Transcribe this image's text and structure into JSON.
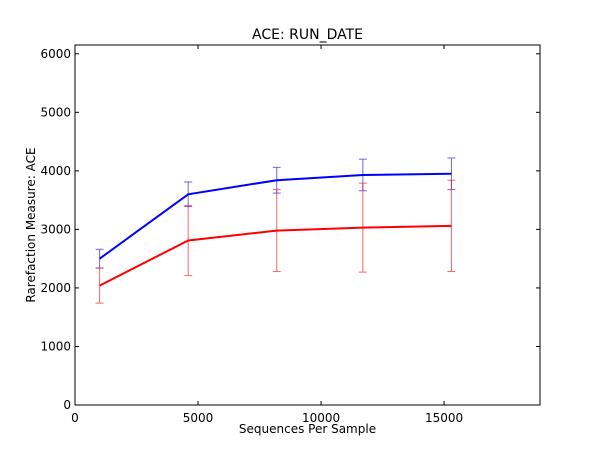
{
  "chart_data": {
    "type": "line",
    "title": "ACE: RUN_DATE",
    "xlabel": "Sequences Per Sample",
    "ylabel": "Rarefaction Measure: ACE",
    "xlim": [
      0,
      18900
    ],
    "ylim": [
      0,
      6150
    ],
    "xticks": [
      0,
      5000,
      10000,
      15000
    ],
    "yticks": [
      0,
      1000,
      2000,
      3000,
      4000,
      5000,
      6000
    ],
    "grid": false,
    "series": [
      {
        "color": "#0000ff",
        "x": [
          1000,
          4600,
          8200,
          11700,
          15300
        ],
        "y": [
          2500,
          3600,
          3840,
          3930,
          3950
        ],
        "yerr": [
          160,
          210,
          220,
          270,
          270
        ]
      },
      {
        "color": "#ff0000",
        "x": [
          1000,
          4600,
          8200,
          11700,
          15300
        ],
        "y": [
          2040,
          2810,
          2980,
          3030,
          3060
        ],
        "yerr": [
          300,
          600,
          700,
          760,
          780
        ]
      }
    ]
  }
}
